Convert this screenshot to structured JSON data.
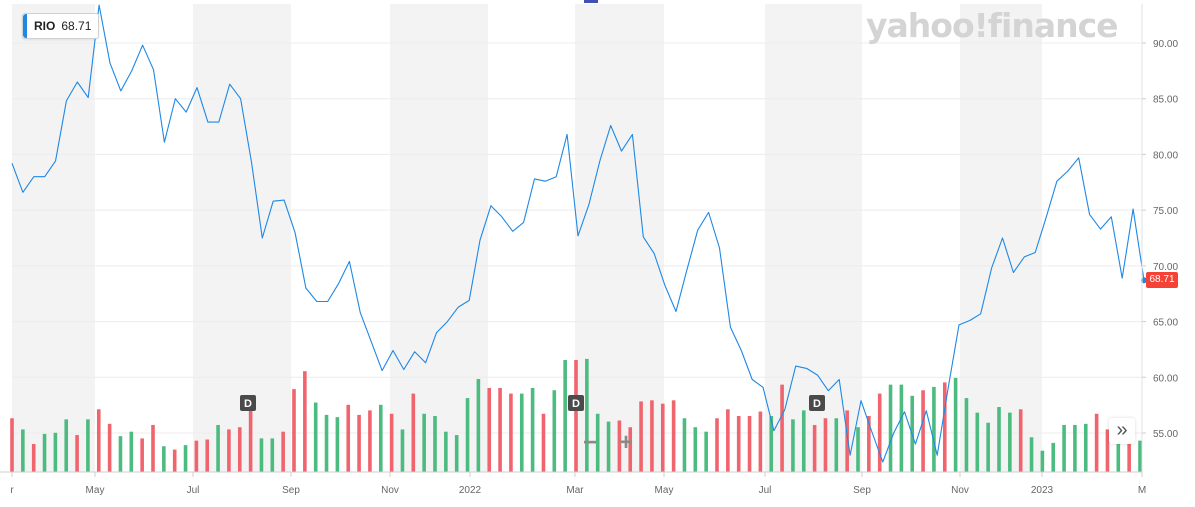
{
  "ticker": {
    "symbol": "RIO",
    "price": "68.71"
  },
  "logo": "yahoo!finance",
  "price_tag": "68.71",
  "zoom": {
    "minus": "−",
    "plus": "+"
  },
  "nav_icon": "»",
  "colors": {
    "line": "#1e88e5",
    "up": "#4cbb7f",
    "down": "#f0646e",
    "band": "#f3f3f3",
    "price": "#f44336"
  },
  "chart_data": {
    "type": "line",
    "title": "",
    "xlabel": "",
    "ylabel": "",
    "ylim": [
      51.5,
      93.5
    ],
    "y_ticks": [
      "90.00",
      "85.00",
      "80.00",
      "75.00",
      "70.00",
      "65.00",
      "60.00",
      "55.00"
    ],
    "x_ticks": [
      "r",
      "May",
      "Jul",
      "Sep",
      "Nov",
      "2022",
      "Mar",
      "May",
      "Jul",
      "Sep",
      "Nov",
      "2023",
      "M"
    ],
    "dividend_markers": [
      "D",
      "D",
      "D"
    ],
    "series": [
      {
        "values": [
          79.2,
          76.6,
          78.0,
          78.0,
          79.4,
          84.8,
          86.5,
          85.1,
          93.4,
          88.2,
          85.7,
          87.5,
          89.8,
          87.6,
          81.1,
          85.0,
          83.8,
          86.0,
          82.9,
          82.9,
          86.3,
          85.0,
          79.3,
          72.5,
          75.8,
          75.9,
          73.0,
          68.0,
          66.8,
          66.8,
          68.4,
          70.4,
          65.8,
          63.2,
          60.6,
          62.4,
          60.7,
          62.3,
          61.3,
          64.0,
          65.0,
          66.3,
          66.9,
          72.3,
          75.4,
          74.4,
          73.1,
          73.9,
          77.8,
          77.6,
          78.0,
          81.8,
          72.7,
          75.5,
          79.4,
          82.6,
          80.3,
          81.8,
          72.6,
          71.1,
          68.2,
          65.9,
          69.6,
          73.2,
          74.8,
          71.6,
          64.5,
          62.4,
          59.8,
          59.1,
          55.2,
          57.1,
          61.0,
          60.8,
          60.2,
          58.8,
          59.8,
          53.0,
          57.9,
          55.1,
          52.4,
          55.0,
          56.9,
          54.0,
          57.0,
          53.0,
          59.0,
          64.7,
          65.1,
          65.7,
          69.8,
          72.5,
          69.4,
          70.8,
          71.2,
          74.3,
          77.6,
          78.5,
          79.7,
          74.6,
          73.3,
          74.4,
          68.9,
          75.1,
          68.71
        ]
      }
    ],
    "volume": [
      {
        "h": 0.48,
        "dir": "down"
      },
      {
        "h": 0.38,
        "dir": "up"
      },
      {
        "h": 0.25,
        "dir": "down"
      },
      {
        "h": 0.34,
        "dir": "up"
      },
      {
        "h": 0.35,
        "dir": "up"
      },
      {
        "h": 0.47,
        "dir": "up"
      },
      {
        "h": 0.33,
        "dir": "down"
      },
      {
        "h": 0.47,
        "dir": "up"
      },
      {
        "h": 0.56,
        "dir": "down"
      },
      {
        "h": 0.43,
        "dir": "down"
      },
      {
        "h": 0.32,
        "dir": "up"
      },
      {
        "h": 0.36,
        "dir": "up"
      },
      {
        "h": 0.3,
        "dir": "down"
      },
      {
        "h": 0.42,
        "dir": "down"
      },
      {
        "h": 0.23,
        "dir": "up"
      },
      {
        "h": 0.2,
        "dir": "down"
      },
      {
        "h": 0.24,
        "dir": "up"
      },
      {
        "h": 0.28,
        "dir": "down"
      },
      {
        "h": 0.29,
        "dir": "down"
      },
      {
        "h": 0.42,
        "dir": "up"
      },
      {
        "h": 0.38,
        "dir": "down"
      },
      {
        "h": 0.4,
        "dir": "down"
      },
      {
        "h": 0.55,
        "dir": "down"
      },
      {
        "h": 0.3,
        "dir": "up"
      },
      {
        "h": 0.3,
        "dir": "up"
      },
      {
        "h": 0.36,
        "dir": "down"
      },
      {
        "h": 0.74,
        "dir": "down"
      },
      {
        "h": 0.9,
        "dir": "down"
      },
      {
        "h": 0.62,
        "dir": "up"
      },
      {
        "h": 0.51,
        "dir": "up"
      },
      {
        "h": 0.49,
        "dir": "up"
      },
      {
        "h": 0.6,
        "dir": "down"
      },
      {
        "h": 0.51,
        "dir": "down"
      },
      {
        "h": 0.55,
        "dir": "down"
      },
      {
        "h": 0.6,
        "dir": "up"
      },
      {
        "h": 0.52,
        "dir": "down"
      },
      {
        "h": 0.38,
        "dir": "up"
      },
      {
        "h": 0.7,
        "dir": "down"
      },
      {
        "h": 0.52,
        "dir": "up"
      },
      {
        "h": 0.5,
        "dir": "up"
      },
      {
        "h": 0.36,
        "dir": "up"
      },
      {
        "h": 0.33,
        "dir": "up"
      },
      {
        "h": 0.66,
        "dir": "up"
      },
      {
        "h": 0.83,
        "dir": "up"
      },
      {
        "h": 0.75,
        "dir": "down"
      },
      {
        "h": 0.75,
        "dir": "down"
      },
      {
        "h": 0.7,
        "dir": "down"
      },
      {
        "h": 0.7,
        "dir": "up"
      },
      {
        "h": 0.75,
        "dir": "up"
      },
      {
        "h": 0.52,
        "dir": "down"
      },
      {
        "h": 0.73,
        "dir": "up"
      },
      {
        "h": 1.0,
        "dir": "up"
      },
      {
        "h": 1.0,
        "dir": "down"
      },
      {
        "h": 1.01,
        "dir": "up"
      },
      {
        "h": 0.52,
        "dir": "up"
      },
      {
        "h": 0.45,
        "dir": "up"
      },
      {
        "h": 0.46,
        "dir": "down"
      },
      {
        "h": 0.4,
        "dir": "down"
      },
      {
        "h": 0.63,
        "dir": "down"
      },
      {
        "h": 0.64,
        "dir": "down"
      },
      {
        "h": 0.61,
        "dir": "down"
      },
      {
        "h": 0.64,
        "dir": "down"
      },
      {
        "h": 0.48,
        "dir": "up"
      },
      {
        "h": 0.4,
        "dir": "up"
      },
      {
        "h": 0.36,
        "dir": "up"
      },
      {
        "h": 0.48,
        "dir": "down"
      },
      {
        "h": 0.56,
        "dir": "down"
      },
      {
        "h": 0.5,
        "dir": "down"
      },
      {
        "h": 0.5,
        "dir": "down"
      },
      {
        "h": 0.54,
        "dir": "down"
      },
      {
        "h": 0.5,
        "dir": "up"
      },
      {
        "h": 0.78,
        "dir": "down"
      },
      {
        "h": 0.47,
        "dir": "up"
      },
      {
        "h": 0.55,
        "dir": "up"
      },
      {
        "h": 0.42,
        "dir": "down"
      },
      {
        "h": 0.48,
        "dir": "down"
      },
      {
        "h": 0.48,
        "dir": "up"
      },
      {
        "h": 0.55,
        "dir": "down"
      },
      {
        "h": 0.4,
        "dir": "up"
      },
      {
        "h": 0.5,
        "dir": "down"
      },
      {
        "h": 0.7,
        "dir": "down"
      },
      {
        "h": 0.78,
        "dir": "up"
      },
      {
        "h": 0.78,
        "dir": "up"
      },
      {
        "h": 0.68,
        "dir": "up"
      },
      {
        "h": 0.73,
        "dir": "down"
      },
      {
        "h": 0.76,
        "dir": "up"
      },
      {
        "h": 0.8,
        "dir": "down"
      },
      {
        "h": 0.84,
        "dir": "up"
      },
      {
        "h": 0.66,
        "dir": "up"
      },
      {
        "h": 0.53,
        "dir": "up"
      },
      {
        "h": 0.44,
        "dir": "up"
      },
      {
        "h": 0.58,
        "dir": "up"
      },
      {
        "h": 0.53,
        "dir": "up"
      },
      {
        "h": 0.56,
        "dir": "down"
      },
      {
        "h": 0.31,
        "dir": "up"
      },
      {
        "h": 0.19,
        "dir": "up"
      },
      {
        "h": 0.26,
        "dir": "up"
      },
      {
        "h": 0.42,
        "dir": "up"
      },
      {
        "h": 0.42,
        "dir": "up"
      },
      {
        "h": 0.43,
        "dir": "up"
      },
      {
        "h": 0.52,
        "dir": "down"
      },
      {
        "h": 0.38,
        "dir": "down"
      },
      {
        "h": 0.3,
        "dir": "up"
      },
      {
        "h": 0.33,
        "dir": "down"
      },
      {
        "h": 0.28,
        "dir": "up"
      }
    ]
  }
}
